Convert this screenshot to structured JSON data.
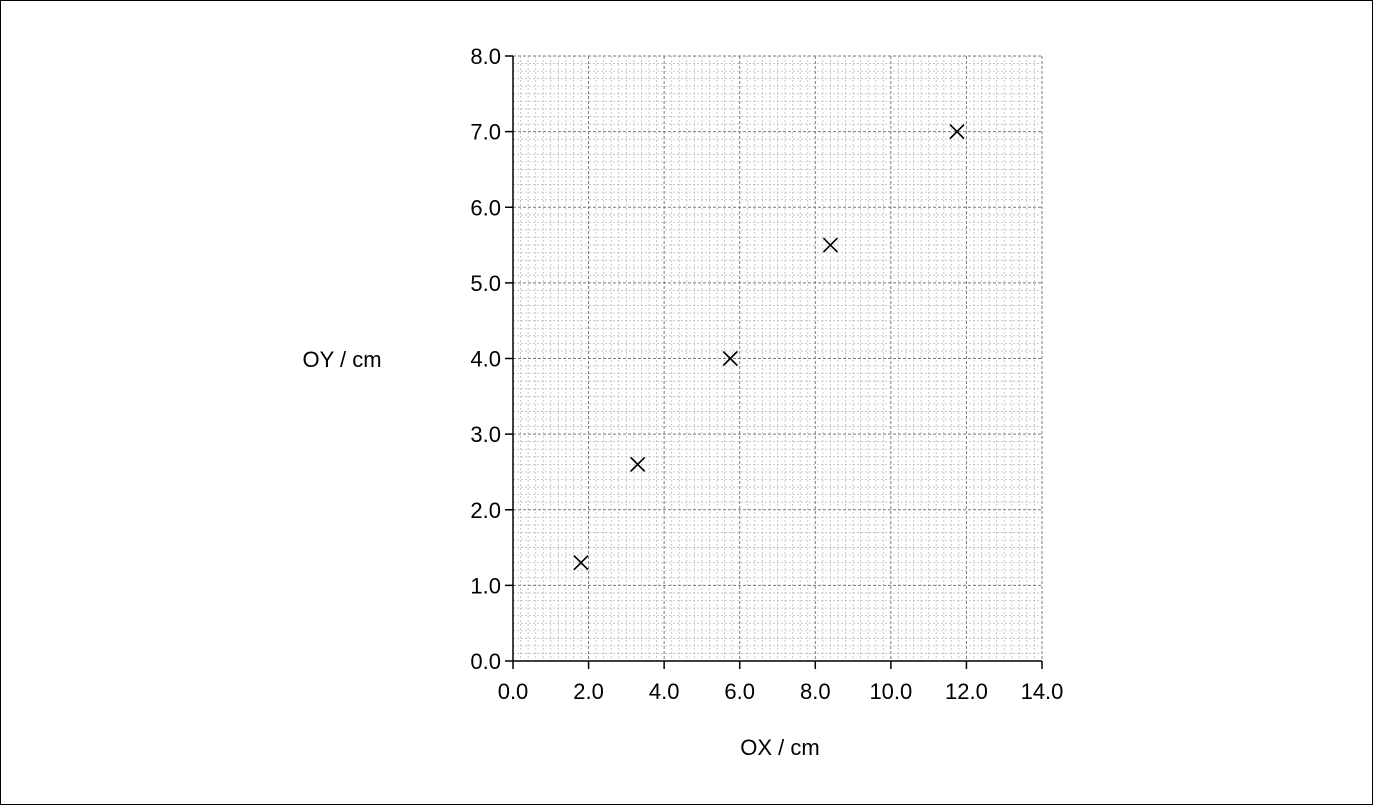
{
  "chart_data": {
    "type": "scatter",
    "title": "",
    "xlabel": "OX / cm",
    "ylabel": "OY / cm",
    "xlim": [
      0,
      14
    ],
    "ylim": [
      0,
      8
    ],
    "x_major_step": 2,
    "y_major_step": 1,
    "x_ticks": [
      "0.0",
      "2.0",
      "4.0",
      "6.0",
      "8.0",
      "10.0",
      "12.0",
      "14.0"
    ],
    "y_ticks": [
      "0.0",
      "1.0",
      "2.0",
      "3.0",
      "4.0",
      "5.0",
      "6.0",
      "7.0",
      "8.0"
    ],
    "grid": true,
    "marker": "x",
    "points": [
      {
        "x": 1.8,
        "y": 1.3
      },
      {
        "x": 3.3,
        "y": 2.6
      },
      {
        "x": 5.75,
        "y": 4.0
      },
      {
        "x": 8.4,
        "y": 5.5
      },
      {
        "x": 11.75,
        "y": 7.0
      }
    ]
  }
}
